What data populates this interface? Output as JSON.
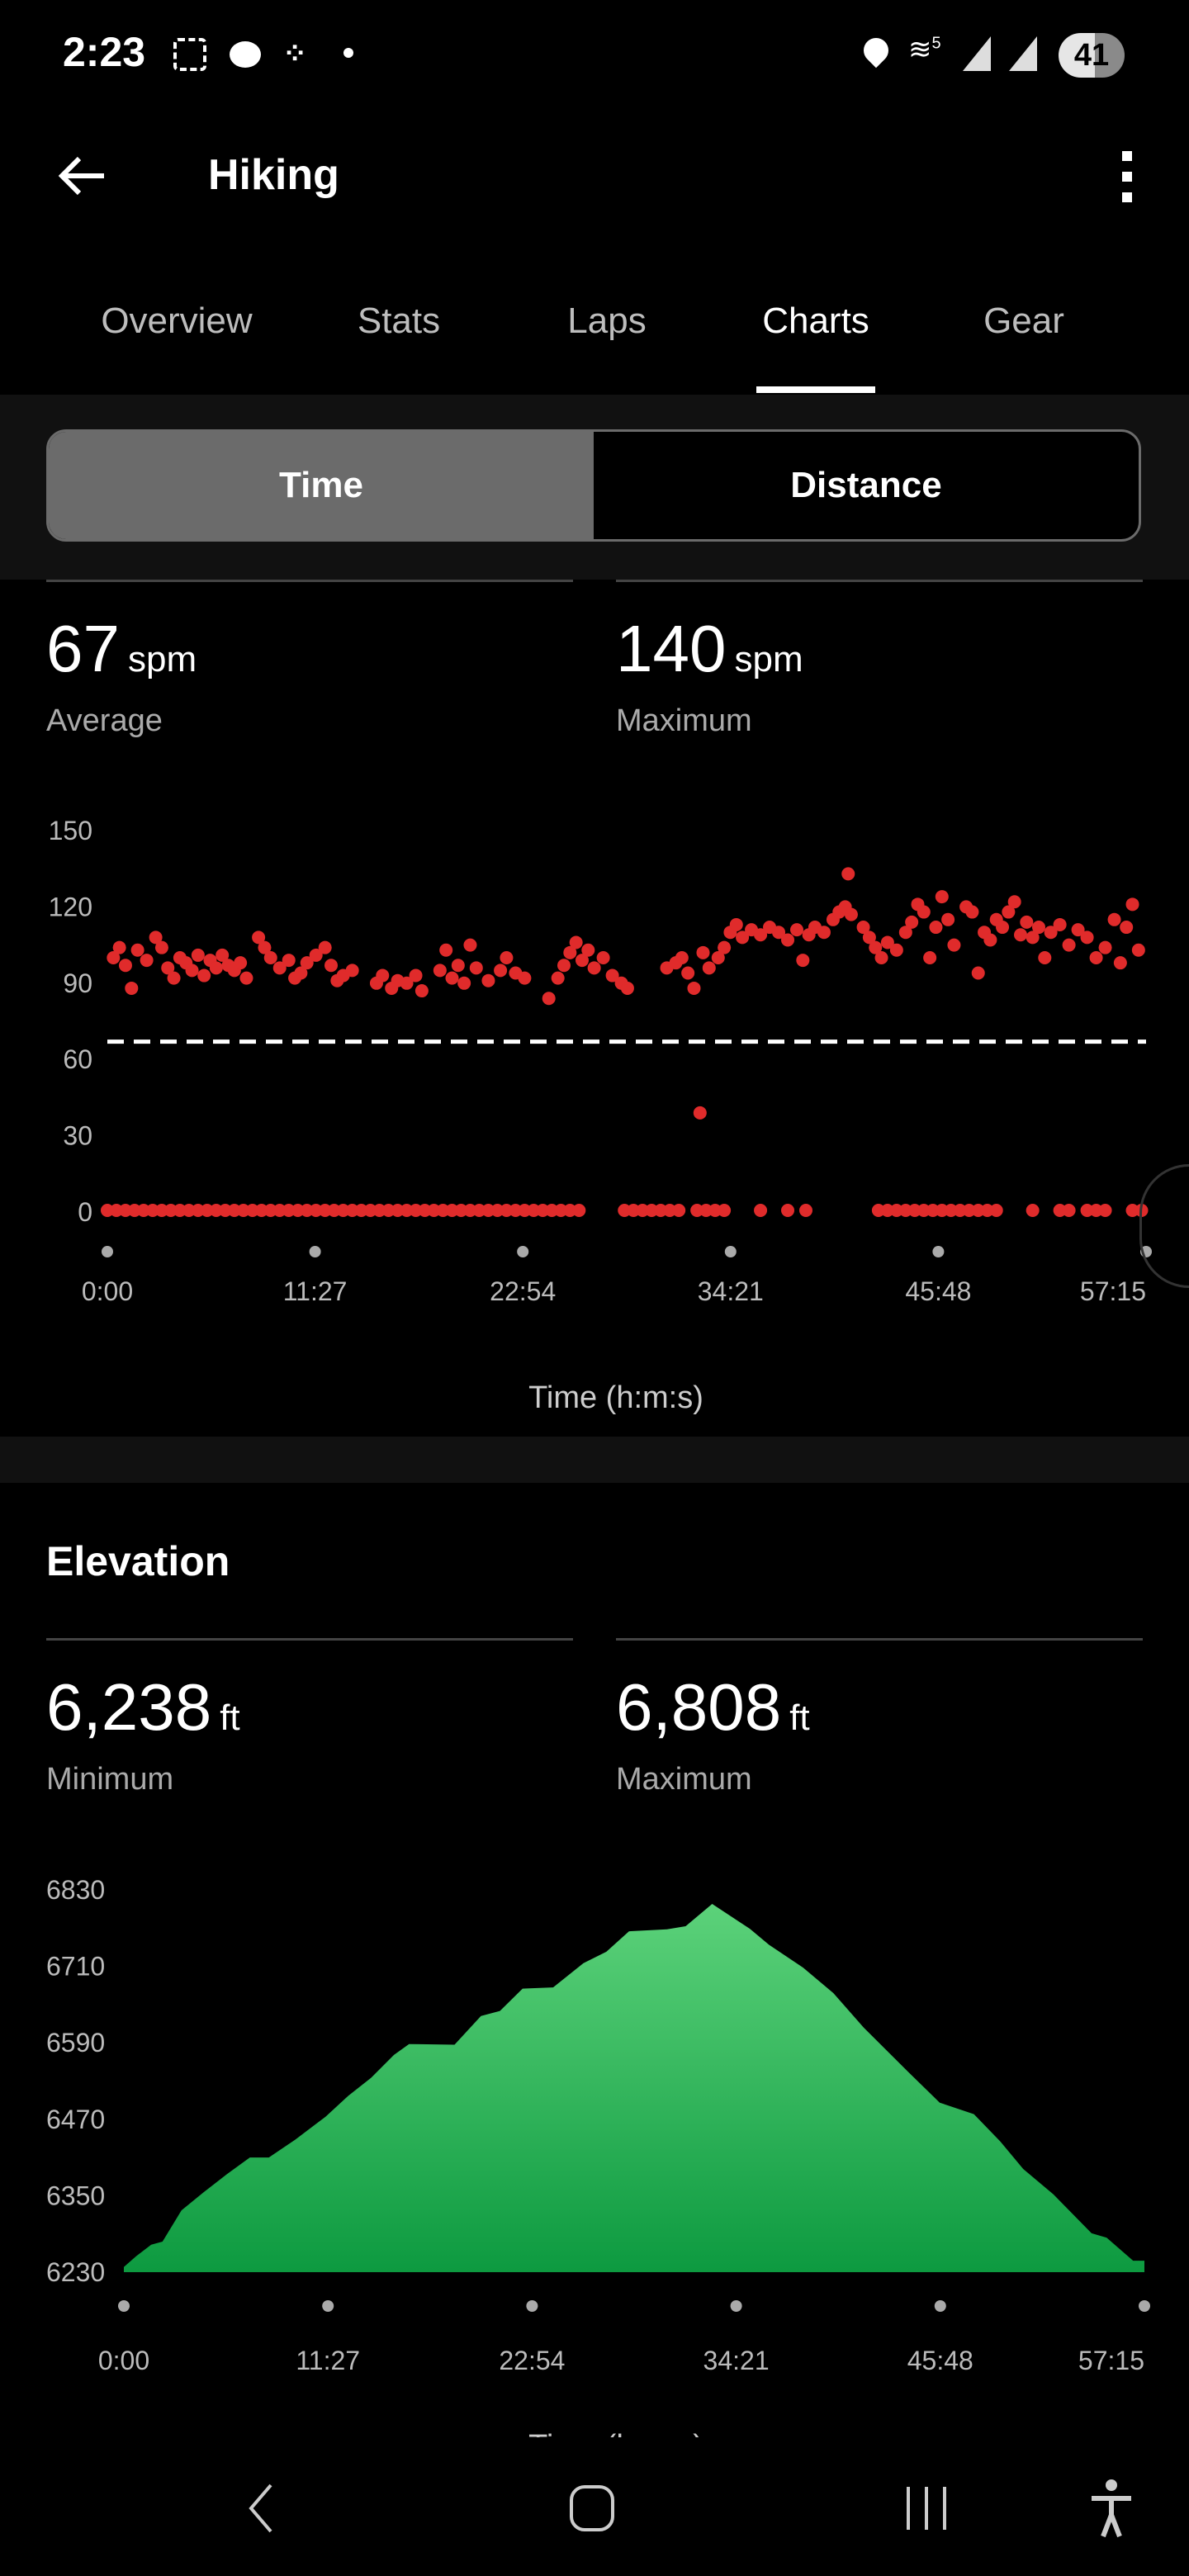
{
  "status_bar": {
    "time": "2:23",
    "battery": "41",
    "network": "5",
    "icons": [
      "screenshot-icon",
      "chat-bubble-icon",
      "slack-icon",
      "dot-icon",
      "location-icon",
      "wifi-icon",
      "signal-icon",
      "signal-icon",
      "battery-icon"
    ]
  },
  "app_bar": {
    "title": "Hiking",
    "back_icon": "arrow-left-icon",
    "menu_icon": "more-vertical-icon"
  },
  "tabs": [
    {
      "label": "Overview",
      "active": false
    },
    {
      "label": "Stats",
      "active": false
    },
    {
      "label": "Laps",
      "active": false
    },
    {
      "label": "Charts",
      "active": true
    },
    {
      "label": "Gear",
      "active": false
    }
  ],
  "segmented": {
    "options": [
      "Time",
      "Distance"
    ],
    "selected": "Time"
  },
  "cadence": {
    "average": {
      "value": "67",
      "unit": "spm",
      "label": "Average"
    },
    "maximum": {
      "value": "140",
      "unit": "spm",
      "label": "Maximum"
    }
  },
  "elevation": {
    "title": "Elevation",
    "minimum": {
      "value": "6,238",
      "unit": "ft",
      "label": "Minimum"
    },
    "maximum": {
      "value": "6,808",
      "unit": "ft",
      "label": "Maximum"
    }
  },
  "colors": {
    "cadence_points": "#e02b2b",
    "average_line": "#ffffff",
    "elevation_top": "#5cd27a",
    "elevation_bottom": "#0d9a40"
  },
  "chart_data": [
    {
      "type": "scatter",
      "xlabel": "Time (h:m:s)",
      "ylabel": "",
      "ylim": [
        0,
        150
      ],
      "yticks": [
        "150",
        "120",
        "90",
        "60",
        "30",
        "0"
      ],
      "xticks": [
        "0:00",
        "11:27",
        "22:54",
        "34:21",
        "45:48",
        "57:15"
      ],
      "xlim": [
        "0:00",
        "57:15"
      ],
      "average_line": 67,
      "points": [
        [
          "0:20",
          100
        ],
        [
          "0:40",
          104
        ],
        [
          "1:00",
          97
        ],
        [
          "1:20",
          88
        ],
        [
          "1:40",
          103
        ],
        [
          "2:10",
          99
        ],
        [
          "2:40",
          108
        ],
        [
          "3:00",
          104
        ],
        [
          "3:20",
          96
        ],
        [
          "3:40",
          92
        ],
        [
          "4:00",
          100
        ],
        [
          "4:20",
          98
        ],
        [
          "4:40",
          95
        ],
        [
          "5:00",
          101
        ],
        [
          "5:20",
          93
        ],
        [
          "5:40",
          99
        ],
        [
          "6:00",
          96
        ],
        [
          "6:20",
          101
        ],
        [
          "6:40",
          97
        ],
        [
          "7:00",
          95
        ],
        [
          "7:20",
          98
        ],
        [
          "7:40",
          92
        ],
        [
          "8:20",
          108
        ],
        [
          "8:40",
          104
        ],
        [
          "9:00",
          100
        ],
        [
          "9:30",
          96
        ],
        [
          "10:00",
          99
        ],
        [
          "10:20",
          92
        ],
        [
          "10:40",
          94
        ],
        [
          "11:00",
          98
        ],
        [
          "11:30",
          101
        ],
        [
          "12:00",
          104
        ],
        [
          "12:20",
          97
        ],
        [
          "12:40",
          91
        ],
        [
          "13:00",
          93
        ],
        [
          "13:30",
          95
        ],
        [
          "14:50",
          90
        ],
        [
          "15:10",
          93
        ],
        [
          "15:40",
          88
        ],
        [
          "16:00",
          91
        ],
        [
          "16:30",
          90
        ],
        [
          "17:00",
          93
        ],
        [
          "17:20",
          87
        ],
        [
          "18:20",
          95
        ],
        [
          "18:40",
          103
        ],
        [
          "19:00",
          92
        ],
        [
          "19:20",
          97
        ],
        [
          "19:40",
          90
        ],
        [
          "20:00",
          105
        ],
        [
          "20:20",
          96
        ],
        [
          "21:00",
          91
        ],
        [
          "21:40",
          95
        ],
        [
          "22:00",
          100
        ],
        [
          "22:30",
          94
        ],
        [
          "23:00",
          92
        ],
        [
          "24:20",
          84
        ],
        [
          "24:50",
          92
        ],
        [
          "25:10",
          97
        ],
        [
          "25:30",
          102
        ],
        [
          "25:50",
          106
        ],
        [
          "26:10",
          99
        ],
        [
          "26:30",
          103
        ],
        [
          "26:50",
          96
        ],
        [
          "27:20",
          100
        ],
        [
          "27:50",
          93
        ],
        [
          "28:20",
          90
        ],
        [
          "28:40",
          88
        ],
        [
          "30:50",
          96
        ],
        [
          "31:20",
          98
        ],
        [
          "31:40",
          100
        ],
        [
          "32:00",
          94
        ],
        [
          "32:20",
          88
        ],
        [
          "32:40",
          39
        ],
        [
          "32:50",
          102
        ],
        [
          "33:10",
          96
        ],
        [
          "33:40",
          100
        ],
        [
          "34:00",
          104
        ],
        [
          "34:20",
          110
        ],
        [
          "34:40",
          113
        ],
        [
          "35:00",
          108
        ],
        [
          "35:30",
          111
        ],
        [
          "36:00",
          109
        ],
        [
          "36:30",
          112
        ],
        [
          "37:00",
          110
        ],
        [
          "37:30",
          107
        ],
        [
          "38:00",
          111
        ],
        [
          "38:20",
          99
        ],
        [
          "38:40",
          109
        ],
        [
          "39:00",
          112
        ],
        [
          "39:30",
          110
        ],
        [
          "40:00",
          115
        ],
        [
          "40:20",
          118
        ],
        [
          "40:40",
          120
        ],
        [
          "40:50",
          133
        ],
        [
          "41:00",
          117
        ],
        [
          "41:40",
          112
        ],
        [
          "42:00",
          108
        ],
        [
          "42:20",
          104
        ],
        [
          "42:40",
          100
        ],
        [
          "43:00",
          106
        ],
        [
          "43:30",
          103
        ],
        [
          "44:00",
          110
        ],
        [
          "44:20",
          114
        ],
        [
          "44:40",
          121
        ],
        [
          "45:00",
          118
        ],
        [
          "45:20",
          100
        ],
        [
          "45:40",
          112
        ],
        [
          "46:00",
          124
        ],
        [
          "46:20",
          115
        ],
        [
          "46:40",
          105
        ],
        [
          "47:20",
          120
        ],
        [
          "47:40",
          118
        ],
        [
          "48:00",
          94
        ],
        [
          "48:20",
          110
        ],
        [
          "48:40",
          107
        ],
        [
          "49:00",
          115
        ],
        [
          "49:20",
          112
        ],
        [
          "49:40",
          118
        ],
        [
          "50:00",
          122
        ],
        [
          "50:20",
          109
        ],
        [
          "50:40",
          114
        ],
        [
          "51:00",
          108
        ],
        [
          "51:20",
          112
        ],
        [
          "51:40",
          100
        ],
        [
          "52:00",
          110
        ],
        [
          "52:30",
          113
        ],
        [
          "53:00",
          105
        ],
        [
          "53:30",
          111
        ],
        [
          "54:00",
          108
        ],
        [
          "54:30",
          100
        ],
        [
          "55:00",
          104
        ],
        [
          "55:30",
          115
        ],
        [
          "55:50",
          98
        ],
        [
          "56:10",
          112
        ],
        [
          "56:30",
          121
        ],
        [
          "56:50",
          103
        ],
        [
          "0:00",
          0
        ],
        [
          "0:30",
          0
        ],
        [
          "1:00",
          0
        ],
        [
          "1:30",
          0
        ],
        [
          "2:00",
          0
        ],
        [
          "2:30",
          0
        ],
        [
          "3:00",
          0
        ],
        [
          "3:30",
          0
        ],
        [
          "4:00",
          0
        ],
        [
          "4:30",
          0
        ],
        [
          "5:00",
          0
        ],
        [
          "5:30",
          0
        ],
        [
          "6:00",
          0
        ],
        [
          "6:30",
          0
        ],
        [
          "7:00",
          0
        ],
        [
          "7:30",
          0
        ],
        [
          "8:00",
          0
        ],
        [
          "8:30",
          0
        ],
        [
          "9:00",
          0
        ],
        [
          "9:30",
          0
        ],
        [
          "10:00",
          0
        ],
        [
          "10:30",
          0
        ],
        [
          "11:00",
          0
        ],
        [
          "11:30",
          0
        ],
        [
          "12:00",
          0
        ],
        [
          "12:30",
          0
        ],
        [
          "13:00",
          0
        ],
        [
          "13:30",
          0
        ],
        [
          "14:00",
          0
        ],
        [
          "14:30",
          0
        ],
        [
          "15:00",
          0
        ],
        [
          "15:30",
          0
        ],
        [
          "16:00",
          0
        ],
        [
          "16:30",
          0
        ],
        [
          "17:00",
          0
        ],
        [
          "17:30",
          0
        ],
        [
          "18:00",
          0
        ],
        [
          "18:30",
          0
        ],
        [
          "19:00",
          0
        ],
        [
          "19:30",
          0
        ],
        [
          "20:00",
          0
        ],
        [
          "20:30",
          0
        ],
        [
          "21:00",
          0
        ],
        [
          "21:30",
          0
        ],
        [
          "22:00",
          0
        ],
        [
          "22:30",
          0
        ],
        [
          "23:00",
          0
        ],
        [
          "23:30",
          0
        ],
        [
          "24:00",
          0
        ],
        [
          "24:30",
          0
        ],
        [
          "25:00",
          0
        ],
        [
          "25:30",
          0
        ],
        [
          "26:00",
          0
        ],
        [
          "28:30",
          0
        ],
        [
          "29:00",
          0
        ],
        [
          "29:30",
          0
        ],
        [
          "30:00",
          0
        ],
        [
          "30:30",
          0
        ],
        [
          "31:00",
          0
        ],
        [
          "31:30",
          0
        ],
        [
          "32:30",
          0
        ],
        [
          "33:00",
          0
        ],
        [
          "33:30",
          0
        ],
        [
          "34:00",
          0
        ],
        [
          "36:00",
          0
        ],
        [
          "37:30",
          0
        ],
        [
          "38:30",
          0
        ],
        [
          "42:30",
          0
        ],
        [
          "43:00",
          0
        ],
        [
          "43:30",
          0
        ],
        [
          "44:00",
          0
        ],
        [
          "44:30",
          0
        ],
        [
          "45:00",
          0
        ],
        [
          "45:30",
          0
        ],
        [
          "46:00",
          0
        ],
        [
          "46:30",
          0
        ],
        [
          "47:00",
          0
        ],
        [
          "47:30",
          0
        ],
        [
          "48:00",
          0
        ],
        [
          "48:30",
          0
        ],
        [
          "49:00",
          0
        ],
        [
          "51:00",
          0
        ],
        [
          "52:30",
          0
        ],
        [
          "53:00",
          0
        ],
        [
          "54:00",
          0
        ],
        [
          "54:30",
          0
        ],
        [
          "55:00",
          0
        ],
        [
          "56:30",
          0
        ],
        [
          "57:00",
          0
        ]
      ]
    },
    {
      "type": "area",
      "xlabel": "Time (h:m:s)",
      "ylabel": "",
      "ylim": [
        6230,
        6830
      ],
      "yticks": [
        "6830",
        "6710",
        "6590",
        "6470",
        "6350",
        "6230"
      ],
      "xticks": [
        "0:00",
        "11:27",
        "22:54",
        "34:21",
        "45:48",
        "57:15"
      ],
      "xlim": [
        "0:00",
        "57:15"
      ],
      "points": [
        [
          "0:00",
          6238
        ],
        [
          "0:41",
          6255
        ],
        [
          "1:32",
          6273
        ],
        [
          "2:10",
          6278
        ],
        [
          "3:14",
          6327
        ],
        [
          "4:30",
          6356
        ],
        [
          "5:47",
          6384
        ],
        [
          "7:04",
          6410
        ],
        [
          "8:08",
          6410
        ],
        [
          "9:37",
          6438
        ],
        [
          "11:19",
          6474
        ],
        [
          "12:36",
          6507
        ],
        [
          "13:52",
          6535
        ],
        [
          "15:09",
          6571
        ],
        [
          "16:00",
          6588
        ],
        [
          "18:33",
          6587
        ],
        [
          "20:02",
          6632
        ],
        [
          "21:06",
          6640
        ],
        [
          "22:22",
          6675
        ],
        [
          "24:05",
          6677
        ],
        [
          "25:47",
          6715
        ],
        [
          "27:04",
          6733
        ],
        [
          "28:20",
          6765
        ],
        [
          "30:28",
          6768
        ],
        [
          "31:31",
          6773
        ],
        [
          "33:00",
          6808
        ],
        [
          "35:07",
          6769
        ],
        [
          "36:11",
          6744
        ],
        [
          "38:06",
          6708
        ],
        [
          "39:48",
          6668
        ],
        [
          "41:30",
          6614
        ],
        [
          "44:03",
          6543
        ],
        [
          "45:46",
          6496
        ],
        [
          "47:41",
          6478
        ],
        [
          "49:10",
          6435
        ],
        [
          "50:27",
          6392
        ],
        [
          "52:09",
          6352
        ],
        [
          "54:17",
          6291
        ],
        [
          "55:08",
          6284
        ],
        [
          "56:37",
          6248
        ],
        [
          "57:15",
          6248
        ]
      ]
    }
  ]
}
